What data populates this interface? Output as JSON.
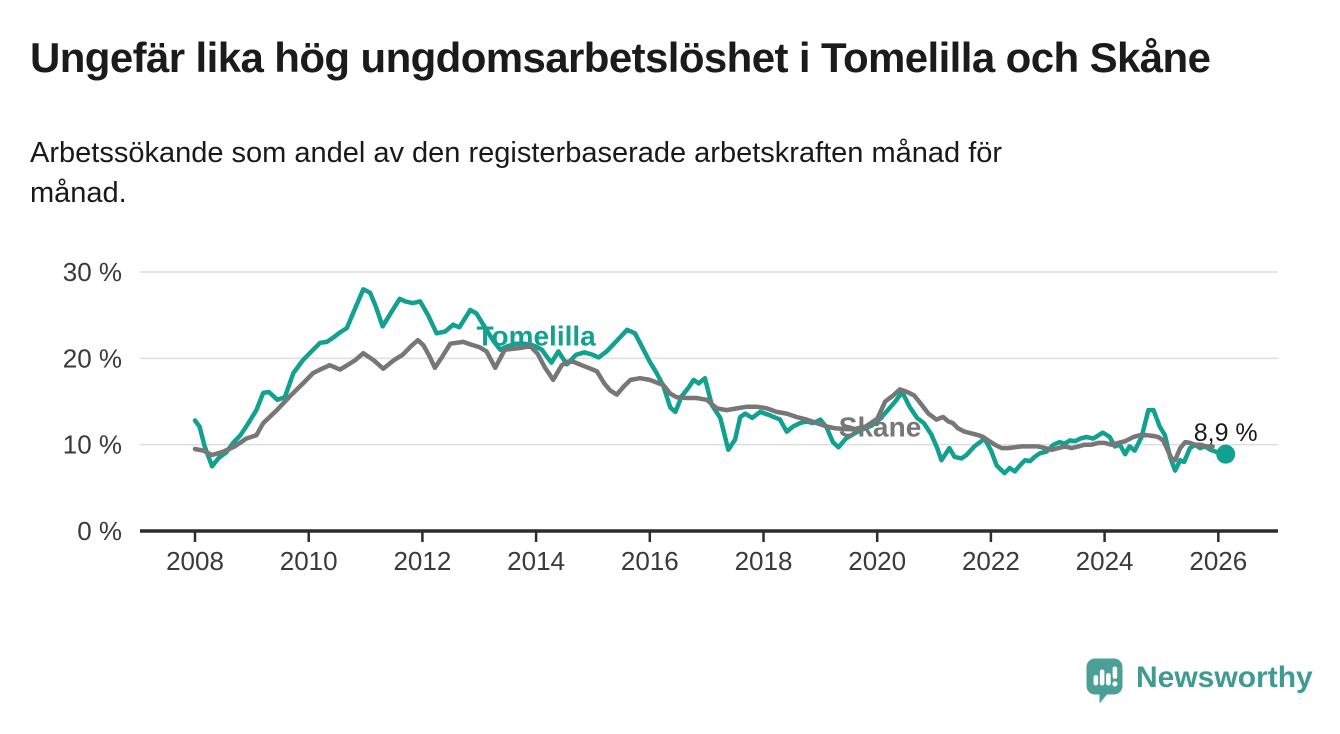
{
  "header": {
    "title": "Ungefär lika hög ungdomsarbetslöshet i Tomelilla och Skåne",
    "subtitle": "Arbetssökande som andel av den registerbaserade arbetskraften månad för månad."
  },
  "footer": {
    "brand": "Newsworthy",
    "brand_color": "#3f9b92",
    "logo_icon": "bar-chart-speech-bubble-icon"
  },
  "chart_data": {
    "type": "line",
    "title": "Ungefär lika hög ungdomsarbetslöshet i Tomelilla och Skåne",
    "subtitle": "Arbetssökande som andel av den registerbaserade arbetskraften månad för månad.",
    "unit": "%",
    "grid": "horizontal",
    "legend": "inline-labels",
    "x_axis": {
      "ticks": [
        "2008",
        "2010",
        "2012",
        "2014",
        "2016",
        "2018",
        "2020",
        "2022",
        "2024",
        "2026"
      ],
      "tick_values": [
        2008,
        2010,
        2012,
        2014,
        2016,
        2018,
        2020,
        2022,
        2024,
        2026
      ],
      "range": [
        2008,
        2026.2
      ]
    },
    "y_axis": {
      "tick_labels": [
        "0 %",
        "10 %",
        "20 %",
        "30 %"
      ],
      "tick_values": [
        0,
        10,
        20,
        30
      ],
      "range": [
        0,
        30
      ]
    },
    "series": [
      {
        "name": "Tomelilla",
        "key": "tomelilla",
        "color": "#12a191",
        "label_at": [
          2014.0,
          22.6
        ],
        "points": [
          [
            2008.0,
            12.8
          ],
          [
            2008.08,
            12.1
          ],
          [
            2008.17,
            9.8
          ],
          [
            2008.3,
            7.5
          ],
          [
            2008.42,
            8.5
          ],
          [
            2008.55,
            9.1
          ],
          [
            2008.67,
            10.2
          ],
          [
            2008.8,
            11.1
          ],
          [
            2008.92,
            12.3
          ],
          [
            2009.08,
            14.0
          ],
          [
            2009.2,
            16.0
          ],
          [
            2009.3,
            16.1
          ],
          [
            2009.45,
            15.2
          ],
          [
            2009.58,
            15.5
          ],
          [
            2009.73,
            18.3
          ],
          [
            2009.9,
            19.8
          ],
          [
            2010.08,
            21.0
          ],
          [
            2010.2,
            21.8
          ],
          [
            2010.32,
            21.9
          ],
          [
            2010.45,
            22.5
          ],
          [
            2010.55,
            23.0
          ],
          [
            2010.67,
            23.5
          ],
          [
            2010.78,
            25.2
          ],
          [
            2010.96,
            28.0
          ],
          [
            2011.08,
            27.6
          ],
          [
            2011.18,
            26.0
          ],
          [
            2011.3,
            23.7
          ],
          [
            2011.45,
            25.3
          ],
          [
            2011.6,
            26.9
          ],
          [
            2011.7,
            26.6
          ],
          [
            2011.83,
            26.4
          ],
          [
            2011.96,
            26.6
          ],
          [
            2012.1,
            25.0
          ],
          [
            2012.25,
            22.9
          ],
          [
            2012.4,
            23.1
          ],
          [
            2012.54,
            23.9
          ],
          [
            2012.65,
            23.6
          ],
          [
            2012.84,
            25.6
          ],
          [
            2012.95,
            25.2
          ],
          [
            2013.1,
            23.6
          ],
          [
            2013.25,
            22.0
          ],
          [
            2013.37,
            21.0
          ],
          [
            2013.5,
            21.4
          ],
          [
            2013.65,
            21.7
          ],
          [
            2013.8,
            21.7
          ],
          [
            2013.95,
            21.5
          ],
          [
            2014.1,
            21.0
          ],
          [
            2014.27,
            19.5
          ],
          [
            2014.39,
            20.8
          ],
          [
            2014.54,
            19.3
          ],
          [
            2014.7,
            20.4
          ],
          [
            2014.85,
            20.7
          ],
          [
            2015.0,
            20.4
          ],
          [
            2015.1,
            20.1
          ],
          [
            2015.24,
            20.8
          ],
          [
            2015.4,
            21.9
          ],
          [
            2015.6,
            23.3
          ],
          [
            2015.74,
            22.9
          ],
          [
            2015.89,
            21.0
          ],
          [
            2016.0,
            19.6
          ],
          [
            2016.12,
            18.3
          ],
          [
            2016.24,
            16.8
          ],
          [
            2016.36,
            14.3
          ],
          [
            2016.45,
            13.8
          ],
          [
            2016.56,
            15.6
          ],
          [
            2016.68,
            16.6
          ],
          [
            2016.77,
            17.5
          ],
          [
            2016.86,
            17.1
          ],
          [
            2016.97,
            17.7
          ],
          [
            2017.09,
            14.6
          ],
          [
            2017.24,
            13.1
          ],
          [
            2017.38,
            9.4
          ],
          [
            2017.5,
            10.6
          ],
          [
            2017.59,
            13.2
          ],
          [
            2017.68,
            13.6
          ],
          [
            2017.8,
            13.1
          ],
          [
            2017.94,
            13.8
          ],
          [
            2018.11,
            13.4
          ],
          [
            2018.29,
            12.9
          ],
          [
            2018.41,
            11.5
          ],
          [
            2018.52,
            12.1
          ],
          [
            2018.64,
            12.5
          ],
          [
            2018.76,
            12.7
          ],
          [
            2018.87,
            12.5
          ],
          [
            2019.0,
            12.9
          ],
          [
            2019.11,
            12.0
          ],
          [
            2019.22,
            10.3
          ],
          [
            2019.32,
            9.7
          ],
          [
            2019.45,
            10.7
          ],
          [
            2019.6,
            11.3
          ],
          [
            2019.75,
            11.8
          ],
          [
            2019.9,
            12.2
          ],
          [
            2020.05,
            13.0
          ],
          [
            2020.2,
            14.1
          ],
          [
            2020.33,
            15.1
          ],
          [
            2020.44,
            16.1
          ],
          [
            2020.57,
            14.4
          ],
          [
            2020.7,
            13.1
          ],
          [
            2020.82,
            12.5
          ],
          [
            2020.95,
            11.2
          ],
          [
            2021.05,
            9.7
          ],
          [
            2021.13,
            8.2
          ],
          [
            2021.27,
            9.6
          ],
          [
            2021.36,
            8.6
          ],
          [
            2021.48,
            8.4
          ],
          [
            2021.57,
            8.8
          ],
          [
            2021.71,
            9.8
          ],
          [
            2021.89,
            10.7
          ],
          [
            2022.01,
            9.2
          ],
          [
            2022.1,
            7.6
          ],
          [
            2022.24,
            6.7
          ],
          [
            2022.33,
            7.3
          ],
          [
            2022.42,
            6.9
          ],
          [
            2022.51,
            7.6
          ],
          [
            2022.6,
            8.2
          ],
          [
            2022.69,
            8.1
          ],
          [
            2022.77,
            8.6
          ],
          [
            2022.86,
            9.0
          ],
          [
            2022.98,
            9.2
          ],
          [
            2023.1,
            10.0
          ],
          [
            2023.21,
            10.3
          ],
          [
            2023.3,
            10.1
          ],
          [
            2023.39,
            10.5
          ],
          [
            2023.48,
            10.4
          ],
          [
            2023.57,
            10.7
          ],
          [
            2023.68,
            10.9
          ],
          [
            2023.8,
            10.7
          ],
          [
            2023.97,
            11.4
          ],
          [
            2024.09,
            10.9
          ],
          [
            2024.18,
            9.8
          ],
          [
            2024.27,
            10.0
          ],
          [
            2024.36,
            8.9
          ],
          [
            2024.44,
            9.8
          ],
          [
            2024.53,
            9.3
          ],
          [
            2024.65,
            10.9
          ],
          [
            2024.77,
            14.0
          ],
          [
            2024.86,
            14.0
          ],
          [
            2024.97,
            12.1
          ],
          [
            2025.06,
            11.1
          ],
          [
            2025.15,
            8.6
          ],
          [
            2025.24,
            7.0
          ],
          [
            2025.33,
            8.2
          ],
          [
            2025.4,
            8.0
          ],
          [
            2025.5,
            9.6
          ],
          [
            2025.59,
            10.0
          ],
          [
            2025.68,
            9.6
          ],
          [
            2025.77,
            9.8
          ],
          [
            2025.86,
            9.4
          ],
          [
            2025.95,
            9.2
          ],
          [
            2026.04,
            9.0
          ],
          [
            2026.13,
            8.9
          ]
        ]
      },
      {
        "name": "Skåne",
        "key": "skane",
        "color": "#777777",
        "label_at": [
          2020.05,
          12.05
        ],
        "points": [
          [
            2008.0,
            9.5
          ],
          [
            2008.15,
            9.3
          ],
          [
            2008.3,
            8.8
          ],
          [
            2008.5,
            9.2
          ],
          [
            2008.7,
            9.8
          ],
          [
            2008.9,
            10.7
          ],
          [
            2009.08,
            11.1
          ],
          [
            2009.2,
            12.5
          ],
          [
            2009.44,
            14.0
          ],
          [
            2009.67,
            15.6
          ],
          [
            2009.9,
            17.1
          ],
          [
            2010.08,
            18.3
          ],
          [
            2010.2,
            18.7
          ],
          [
            2010.37,
            19.2
          ],
          [
            2010.55,
            18.7
          ],
          [
            2010.7,
            19.3
          ],
          [
            2010.82,
            19.8
          ],
          [
            2010.96,
            20.6
          ],
          [
            2011.14,
            19.8
          ],
          [
            2011.31,
            18.8
          ],
          [
            2011.5,
            19.8
          ],
          [
            2011.65,
            20.4
          ],
          [
            2011.8,
            21.4
          ],
          [
            2011.92,
            22.1
          ],
          [
            2012.02,
            21.5
          ],
          [
            2012.12,
            20.3
          ],
          [
            2012.22,
            18.9
          ],
          [
            2012.35,
            20.2
          ],
          [
            2012.49,
            21.7
          ],
          [
            2012.6,
            21.8
          ],
          [
            2012.72,
            21.9
          ],
          [
            2012.85,
            21.6
          ],
          [
            2013.0,
            21.3
          ],
          [
            2013.13,
            20.8
          ],
          [
            2013.28,
            18.9
          ],
          [
            2013.45,
            21.0
          ],
          [
            2013.6,
            21.1
          ],
          [
            2013.72,
            21.2
          ],
          [
            2013.9,
            21.4
          ],
          [
            2014.03,
            20.5
          ],
          [
            2014.15,
            19.0
          ],
          [
            2014.3,
            17.5
          ],
          [
            2014.45,
            19.2
          ],
          [
            2014.55,
            19.6
          ],
          [
            2014.66,
            19.6
          ],
          [
            2014.8,
            19.2
          ],
          [
            2014.92,
            18.9
          ],
          [
            2015.07,
            18.5
          ],
          [
            2015.2,
            17.1
          ],
          [
            2015.3,
            16.3
          ],
          [
            2015.42,
            15.8
          ],
          [
            2015.55,
            16.8
          ],
          [
            2015.66,
            17.5
          ],
          [
            2015.83,
            17.7
          ],
          [
            2016.0,
            17.5
          ],
          [
            2016.12,
            17.2
          ],
          [
            2016.24,
            16.9
          ],
          [
            2016.36,
            15.9
          ],
          [
            2016.47,
            15.5
          ],
          [
            2016.65,
            15.4
          ],
          [
            2016.82,
            15.4
          ],
          [
            2017.0,
            15.2
          ],
          [
            2017.18,
            14.2
          ],
          [
            2017.35,
            14.0
          ],
          [
            2017.53,
            14.2
          ],
          [
            2017.71,
            14.4
          ],
          [
            2017.88,
            14.4
          ],
          [
            2018.06,
            14.2
          ],
          [
            2018.23,
            13.8
          ],
          [
            2018.41,
            13.6
          ],
          [
            2018.58,
            13.2
          ],
          [
            2018.76,
            12.9
          ],
          [
            2018.94,
            12.5
          ],
          [
            2019.11,
            12.1
          ],
          [
            2019.26,
            11.9
          ],
          [
            2019.45,
            11.8
          ],
          [
            2019.6,
            11.8
          ],
          [
            2019.8,
            12.1
          ],
          [
            2020.0,
            13.0
          ],
          [
            2020.14,
            15.0
          ],
          [
            2020.28,
            15.7
          ],
          [
            2020.4,
            16.4
          ],
          [
            2020.53,
            16.1
          ],
          [
            2020.65,
            15.7
          ],
          [
            2020.76,
            14.8
          ],
          [
            2020.9,
            13.6
          ],
          [
            2021.04,
            12.9
          ],
          [
            2021.16,
            13.2
          ],
          [
            2021.25,
            12.7
          ],
          [
            2021.33,
            12.5
          ],
          [
            2021.42,
            11.9
          ],
          [
            2021.54,
            11.5
          ],
          [
            2021.66,
            11.3
          ],
          [
            2021.78,
            11.1
          ],
          [
            2021.86,
            10.9
          ],
          [
            2021.95,
            10.5
          ],
          [
            2022.07,
            10.0
          ],
          [
            2022.19,
            9.6
          ],
          [
            2022.3,
            9.6
          ],
          [
            2022.42,
            9.7
          ],
          [
            2022.54,
            9.8
          ],
          [
            2022.7,
            9.8
          ],
          [
            2022.83,
            9.8
          ],
          [
            2022.95,
            9.6
          ],
          [
            2023.07,
            9.4
          ],
          [
            2023.19,
            9.6
          ],
          [
            2023.3,
            9.8
          ],
          [
            2023.42,
            9.6
          ],
          [
            2023.54,
            9.8
          ],
          [
            2023.65,
            10.0
          ],
          [
            2023.77,
            10.0
          ],
          [
            2023.89,
            10.2
          ],
          [
            2024.0,
            10.2
          ],
          [
            2024.12,
            10.0
          ],
          [
            2024.24,
            10.2
          ],
          [
            2024.36,
            10.4
          ],
          [
            2024.51,
            10.9
          ],
          [
            2024.62,
            11.1
          ],
          [
            2024.74,
            11.1
          ],
          [
            2024.86,
            11.0
          ],
          [
            2024.94,
            10.9
          ],
          [
            2025.03,
            10.5
          ],
          [
            2025.12,
            9.2
          ],
          [
            2025.18,
            8.4
          ],
          [
            2025.24,
            8.2
          ],
          [
            2025.33,
            9.6
          ],
          [
            2025.42,
            10.3
          ],
          [
            2025.5,
            10.2
          ],
          [
            2025.59,
            10.0
          ],
          [
            2025.68,
            10.0
          ],
          [
            2025.8,
            9.8
          ],
          [
            2025.9,
            9.8
          ]
        ]
      }
    ],
    "end_annotation": {
      "text": "8,9 %",
      "x": 2026.13,
      "y": 8.9,
      "color": "#12a191"
    }
  }
}
